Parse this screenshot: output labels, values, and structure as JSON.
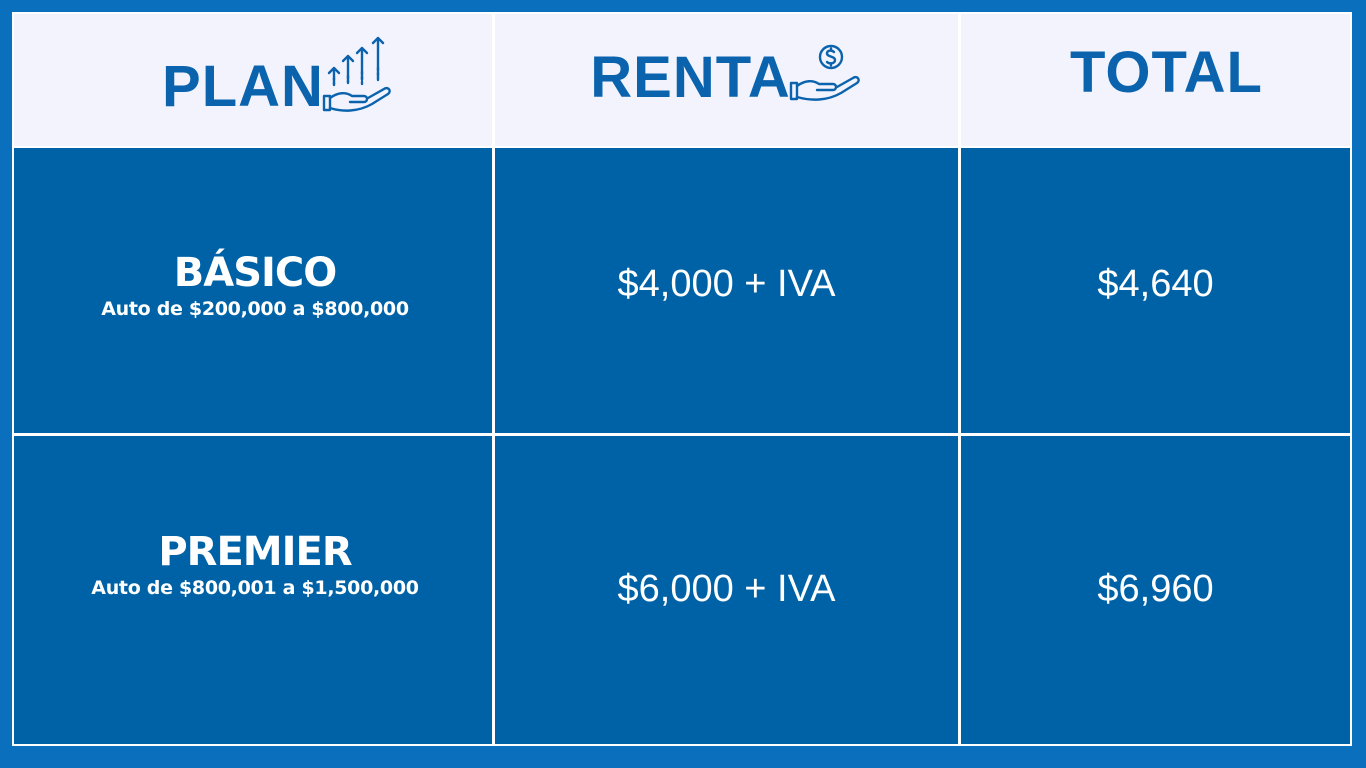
{
  "header": {
    "plan": "PLAN",
    "renta": "RENTA",
    "total": "TOTAL"
  },
  "rows": [
    {
      "plan": "BÁSICO",
      "description": "Auto de $200,000 a $800,000",
      "renta": "$4,000 + IVA",
      "total": "$4,640"
    },
    {
      "plan": "PREMIER",
      "description": "Auto de $800,001 a $1,500,000",
      "renta": "$6,000 + IVA",
      "total": "$6,960"
    }
  ],
  "icons": {
    "plan": "hand-growth-arrows-icon",
    "renta": "hand-coin-icon"
  },
  "colors": {
    "frame": "#0a6fbd",
    "header_bg": "#f2f3fd",
    "header_text": "#0b63ad",
    "cell_bg": "#0062a6",
    "cell_text": "#ffffff"
  }
}
